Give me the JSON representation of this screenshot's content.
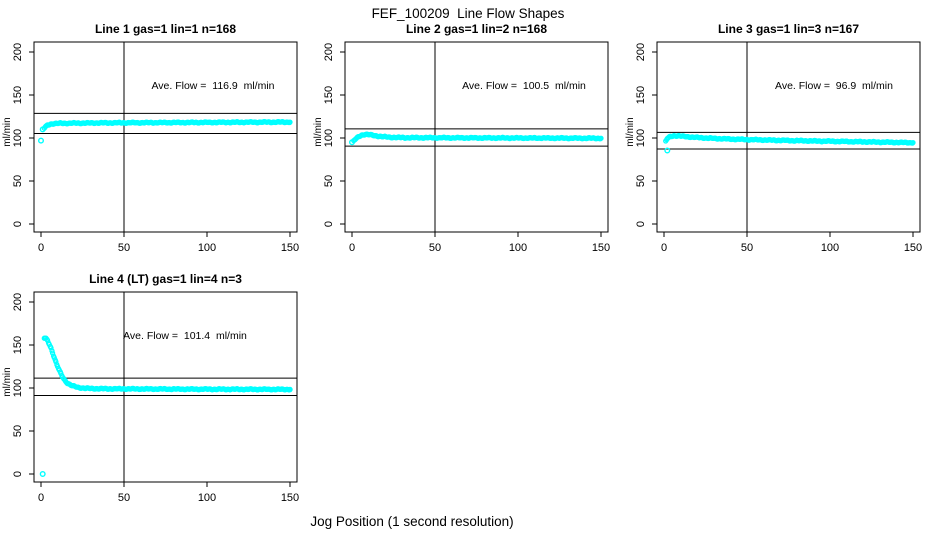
{
  "title": "FEF_100209  Line Flow Shapes",
  "xlabel": "Jog Position (1 second resolution)",
  "colors": {
    "points": "#00FFFF",
    "axis": "#000000",
    "background": "#FFFFFF"
  },
  "chart_data": [
    {
      "type": "scatter",
      "title": "Line 1 gas=1 lin=1 n=168",
      "annotation": "Ave. Flow =  116.9  ml/min",
      "ave_flow": 116.9,
      "n": 168,
      "ylabel": "ml/min",
      "xlim": [
        0,
        150
      ],
      "ylim": [
        0,
        200
      ],
      "xticks": [
        0,
        50,
        100,
        150
      ],
      "yticks": [
        0,
        50,
        100,
        150,
        200
      ],
      "vline_x": 50,
      "hlines": [
        128.6,
        105.2
      ],
      "curve_points": [
        [
          2,
          111.5
        ],
        [
          3,
          113.5
        ],
        [
          4,
          115
        ],
        [
          6,
          116.3
        ],
        [
          8,
          116.8
        ],
        [
          12,
          117.1
        ],
        [
          20,
          117.3
        ],
        [
          40,
          117.6
        ],
        [
          70,
          117.9
        ],
        [
          100,
          118.1
        ],
        [
          130,
          118.4
        ],
        [
          150,
          118.5
        ]
      ],
      "outlier_points": [
        [
          0,
          97
        ],
        [
          1,
          110
        ]
      ]
    },
    {
      "type": "scatter",
      "title": "Line 2 gas=1 lin=2 n=168",
      "annotation": "Ave. Flow =  100.5  ml/min",
      "ave_flow": 100.5,
      "n": 168,
      "ylabel": "ml/min",
      "xlim": [
        0,
        150
      ],
      "ylim": [
        0,
        200
      ],
      "xticks": [
        0,
        50,
        100,
        150
      ],
      "yticks": [
        0,
        50,
        100,
        150,
        200
      ],
      "vline_x": 50,
      "hlines": [
        110.6,
        90.5
      ],
      "curve_points": [
        [
          1,
          96.5
        ],
        [
          2,
          98.5
        ],
        [
          4,
          101.5
        ],
        [
          6,
          103.5
        ],
        [
          8,
          104.3
        ],
        [
          10,
          104
        ],
        [
          14,
          102.7
        ],
        [
          18,
          101.6
        ],
        [
          24,
          100.8
        ],
        [
          32,
          100.4
        ],
        [
          50,
          100.3
        ],
        [
          80,
          100.1
        ],
        [
          110,
          100
        ],
        [
          150,
          99.7
        ]
      ],
      "outlier_points": [
        [
          0,
          95
        ]
      ]
    },
    {
      "type": "scatter",
      "title": "Line 3 gas=1 lin=3 n=167",
      "annotation": "Ave. Flow =  96.9  ml/min",
      "ave_flow": 96.9,
      "n": 167,
      "ylabel": "ml/min",
      "xlim": [
        0,
        150
      ],
      "ylim": [
        0,
        200
      ],
      "xticks": [
        0,
        50,
        100,
        150
      ],
      "yticks": [
        0,
        50,
        100,
        150,
        200
      ],
      "vline_x": 50,
      "hlines": [
        106.6,
        87.2
      ],
      "curve_points": [
        [
          1,
          96
        ],
        [
          2,
          99.5
        ],
        [
          4,
          101.8
        ],
        [
          6,
          102.6
        ],
        [
          9,
          102.4
        ],
        [
          14,
          101.5
        ],
        [
          20,
          100.6
        ],
        [
          28,
          99.7
        ],
        [
          38,
          98.9
        ],
        [
          50,
          98.2
        ],
        [
          65,
          97.5
        ],
        [
          80,
          96.9
        ],
        [
          95,
          96.4
        ],
        [
          110,
          95.9
        ],
        [
          125,
          95.4
        ],
        [
          140,
          94.9
        ],
        [
          150,
          94.6
        ]
      ],
      "outlier_points": [
        [
          2,
          85.5
        ]
      ]
    },
    {
      "type": "scatter",
      "title": "Line 4 (LT) gas=1 lin=4 n=3",
      "annotation": "Ave. Flow =  101.4  ml/min",
      "ave_flow": 101.4,
      "n": 3,
      "ylabel": "ml/min",
      "xlim": [
        0,
        150
      ],
      "ylim": [
        0,
        200
      ],
      "xticks": [
        0,
        50,
        100,
        150
      ],
      "yticks": [
        0,
        50,
        100,
        150,
        200
      ],
      "vline_x": 50,
      "hlines": [
        111.5,
        91.3
      ],
      "curve_points": [
        [
          2,
          158
        ],
        [
          3,
          157.5
        ],
        [
          4,
          155
        ],
        [
          5,
          151
        ],
        [
          6,
          146.5
        ],
        [
          7,
          141
        ],
        [
          8,
          135.5
        ],
        [
          9,
          130
        ],
        [
          10,
          125
        ],
        [
          11,
          120.5
        ],
        [
          12,
          116.5
        ],
        [
          13,
          113
        ],
        [
          14,
          110
        ],
        [
          15,
          107.5
        ],
        [
          16,
          105.7
        ],
        [
          18,
          103.3
        ],
        [
          20,
          101.8
        ],
        [
          23,
          100.5
        ],
        [
          26,
          99.8
        ],
        [
          30,
          99.4
        ],
        [
          40,
          99.1
        ],
        [
          60,
          98.9
        ],
        [
          90,
          98.7
        ],
        [
          120,
          98.5
        ],
        [
          150,
          98.4
        ]
      ],
      "outlier_points": [
        [
          1,
          0
        ]
      ]
    }
  ]
}
